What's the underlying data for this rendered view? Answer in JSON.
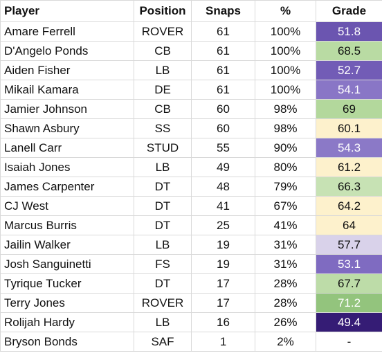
{
  "columns": {
    "player": "Player",
    "position": "Position",
    "snaps": "Snaps",
    "pct": "%",
    "grade": "Grade"
  },
  "rows": [
    {
      "player": "Amare Ferrell",
      "position": "ROVER",
      "snaps": "61",
      "pct": "100%",
      "grade": "51.8",
      "grade_bg": "#6b55b0",
      "grade_fg": "#ffffff"
    },
    {
      "player": "D'Angelo Ponds",
      "position": "CB",
      "snaps": "61",
      "pct": "100%",
      "grade": "68.5",
      "grade_bg": "#b9dba3",
      "grade_fg": "#111111"
    },
    {
      "player": "Aiden Fisher",
      "position": "LB",
      "snaps": "61",
      "pct": "100%",
      "grade": "52.7",
      "grade_bg": "#725cb6",
      "grade_fg": "#ffffff"
    },
    {
      "player": "Mikail Kamara",
      "position": "DE",
      "snaps": "61",
      "pct": "100%",
      "grade": "54.1",
      "grade_bg": "#8976c6",
      "grade_fg": "#ffffff"
    },
    {
      "player": "Jamier Johnson",
      "position": "CB",
      "snaps": "60",
      "pct": "98%",
      "grade": "69",
      "grade_bg": "#b3d89c",
      "grade_fg": "#111111"
    },
    {
      "player": "Shawn Asbury",
      "position": "SS",
      "snaps": "60",
      "pct": "98%",
      "grade": "60.1",
      "grade_bg": "#fdf1cc",
      "grade_fg": "#111111"
    },
    {
      "player": "Lanell Carr",
      "position": "STUD",
      "snaps": "55",
      "pct": "90%",
      "grade": "54.3",
      "grade_bg": "#8b79c7",
      "grade_fg": "#ffffff"
    },
    {
      "player": "Isaiah Jones",
      "position": "LB",
      "snaps": "49",
      "pct": "80%",
      "grade": "61.2",
      "grade_bg": "#fdf1cc",
      "grade_fg": "#111111"
    },
    {
      "player": "James Carpenter",
      "position": "DT",
      "snaps": "48",
      "pct": "79%",
      "grade": "66.3",
      "grade_bg": "#c7e2b4",
      "grade_fg": "#111111"
    },
    {
      "player": "CJ West",
      "position": "DT",
      "snaps": "41",
      "pct": "67%",
      "grade": "64.2",
      "grade_bg": "#fdf1cc",
      "grade_fg": "#111111"
    },
    {
      "player": "Marcus Burris",
      "position": "DT",
      "snaps": "25",
      "pct": "41%",
      "grade": "64",
      "grade_bg": "#fdf1cc",
      "grade_fg": "#111111"
    },
    {
      "player": "Jailin Walker",
      "position": "LB",
      "snaps": "19",
      "pct": "31%",
      "grade": "57.7",
      "grade_bg": "#d9d2ea",
      "grade_fg": "#111111"
    },
    {
      "player": "Josh Sanguinetti",
      "position": "FS",
      "snaps": "19",
      "pct": "31%",
      "grade": "53.1",
      "grade_bg": "#7f6bc1",
      "grade_fg": "#ffffff"
    },
    {
      "player": "Tyrique Tucker",
      "position": "DT",
      "snaps": "17",
      "pct": "28%",
      "grade": "67.7",
      "grade_bg": "#bddca8",
      "grade_fg": "#111111"
    },
    {
      "player": "Terry Jones",
      "position": "ROVER",
      "snaps": "17",
      "pct": "28%",
      "grade": "71.2",
      "grade_bg": "#93c47d",
      "grade_fg": "#ffffff"
    },
    {
      "player": "Rolijah Hardy",
      "position": "LB",
      "snaps": "16",
      "pct": "26%",
      "grade": "49.4",
      "grade_bg": "#351c75",
      "grade_fg": "#ffffff"
    },
    {
      "player": "Bryson Bonds",
      "position": "SAF",
      "snaps": "1",
      "pct": "2%",
      "grade": "-",
      "grade_bg": "#ffffff",
      "grade_fg": "#111111"
    }
  ]
}
